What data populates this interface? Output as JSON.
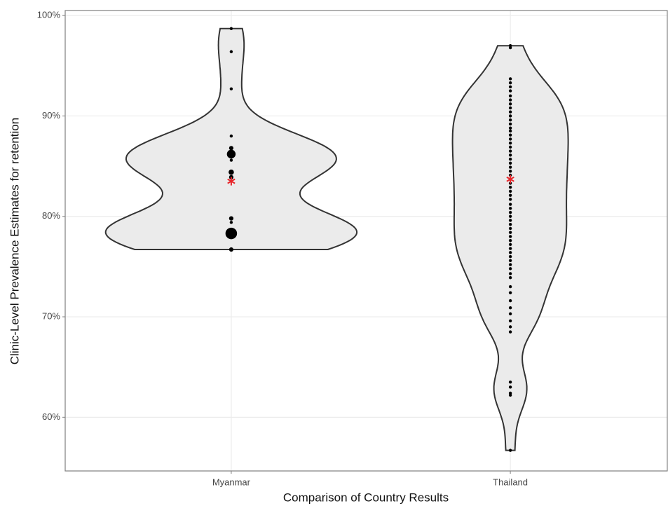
{
  "chart_data": {
    "type": "violin",
    "x_label": "Comparison of Country Results",
    "y_label": "Clinic-Level Prevalence Estimates for retention",
    "categories": [
      "Myanmar",
      "Thailand"
    ],
    "points": [
      [
        98.7,
        96.4,
        92.7,
        88.0,
        86.8,
        86.2,
        85.6,
        84.4,
        83.9,
        79.8,
        79.4,
        78.3,
        76.7
      ],
      [
        97.0,
        96.8,
        93.7,
        93.3,
        92.9,
        92.5,
        92.0,
        91.6,
        91.2,
        90.8,
        90.4,
        90.0,
        89.6,
        89.2,
        88.8,
        88.5,
        88.1,
        87.7,
        87.3,
        86.9,
        86.5,
        86.1,
        85.7,
        85.3,
        84.9,
        84.5,
        84.1,
        83.7,
        83.3,
        82.9,
        82.5,
        82.1,
        81.7,
        81.2,
        80.8,
        80.4,
        80.0,
        79.6,
        79.2,
        78.8,
        78.4,
        78.0,
        77.6,
        77.2,
        76.8,
        76.4,
        76.0,
        75.6,
        75.2,
        74.8,
        74.3,
        73.9,
        73.0,
        72.4,
        71.6,
        70.9,
        70.3,
        69.6,
        69.0,
        68.5,
        63.5,
        63.0,
        62.4,
        62.2,
        56.7
      ]
    ],
    "point_sizes": [
      [
        1,
        1,
        1,
        1,
        2,
        8,
        1,
        3,
        2,
        2,
        1,
        14,
        2
      ],
      [
        1,
        1,
        1,
        1,
        1,
        1,
        1,
        1,
        1,
        1,
        1,
        1,
        1,
        1,
        1,
        1,
        1,
        1,
        1,
        1,
        1,
        1,
        1,
        1,
        1,
        1,
        1,
        1,
        1,
        1,
        1,
        1,
        1,
        1,
        1,
        1,
        1,
        1,
        1,
        1,
        1,
        1,
        1,
        1,
        1,
        1,
        1,
        1,
        1,
        1,
        1,
        1,
        1,
        1,
        1,
        1,
        1,
        1,
        1,
        1,
        1,
        1,
        1,
        1,
        1
      ]
    ],
    "means": [
      83.5,
      83.7
    ],
    "violin_color": "#ebebeb",
    "point_color": "#000000",
    "mean_color": "#e8262b",
    "ylim": [
      54.65,
      100.5
    ],
    "yticks": [
      {
        "value": 60,
        "label": "60%"
      },
      {
        "value": 70,
        "label": "70%"
      },
      {
        "value": 80,
        "label": "80%"
      },
      {
        "value": 90,
        "label": "90%"
      },
      {
        "value": 100,
        "label": "100%"
      }
    ],
    "grid": true
  }
}
